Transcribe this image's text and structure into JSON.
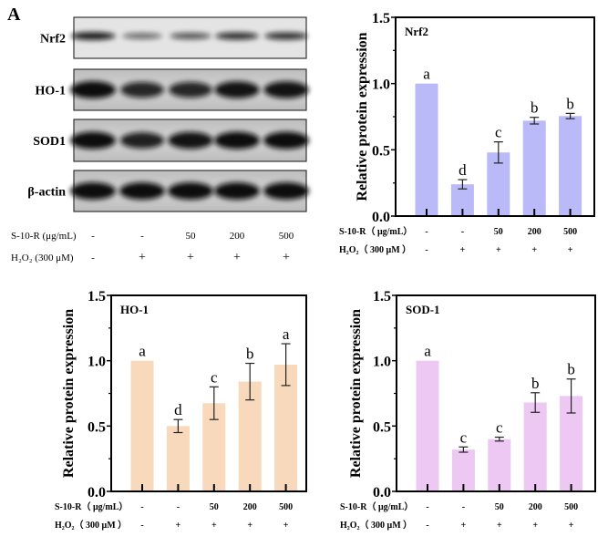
{
  "panel_label": "A",
  "western_blot": {
    "rows": [
      {
        "label": "Nrf2",
        "band_intensity": [
          0.9,
          0.35,
          0.5,
          0.75,
          0.75
        ]
      },
      {
        "label": "HO-1",
        "band_intensity": [
          1.0,
          0.8,
          0.8,
          0.95,
          0.95
        ]
      },
      {
        "label": "SOD1",
        "band_intensity": [
          1.0,
          0.85,
          0.95,
          1.0,
          1.0
        ]
      },
      {
        "label": "β-actin",
        "band_intensity": [
          1.0,
          1.0,
          1.0,
          1.0,
          1.0
        ]
      }
    ],
    "treatment_rows": [
      {
        "label": "S-10-R (μg/mL)",
        "values": [
          "-",
          "-",
          "50",
          "200",
          "500"
        ]
      },
      {
        "label": "H₂O₂ (300 μM)",
        "values": [
          "-",
          "+",
          "+",
          "+",
          "+"
        ]
      }
    ]
  },
  "chart_data": [
    {
      "type": "bar",
      "title": "Nrf2",
      "ylabel": "Relative protein expression",
      "ylim": [
        0,
        1.5
      ],
      "yticks": [
        "0.0",
        "0.5",
        "1.0",
        "1.5"
      ],
      "color": "#babaf8",
      "values": [
        1.0,
        0.24,
        0.48,
        0.72,
        0.755
      ],
      "errors": [
        0,
        0.035,
        0.08,
        0.025,
        0.02
      ],
      "letters": [
        "a",
        "d",
        "c",
        "b",
        "b"
      ],
      "treatment_rows": [
        {
          "label": "S-10-R（ μg/mL）",
          "values": [
            "-",
            "-",
            "50",
            "200",
            "500"
          ]
        },
        {
          "label": "H₂O₂（ 300 μM ）",
          "values": [
            "-",
            "+",
            "+",
            "+",
            "+"
          ]
        }
      ]
    },
    {
      "type": "bar",
      "title": "HO-1",
      "ylabel": "Relative protein expression",
      "ylim": [
        0,
        1.5
      ],
      "yticks": [
        "0.0",
        "0.5",
        "1.0",
        "1.5"
      ],
      "color": "#f8d9bc",
      "values": [
        1.0,
        0.5,
        0.675,
        0.84,
        0.97
      ],
      "errors": [
        0,
        0.05,
        0.125,
        0.14,
        0.16
      ],
      "letters": [
        "a",
        "d",
        "c",
        "b",
        "a"
      ],
      "treatment_rows": [
        {
          "label": "S-10-R（ μg/mL）",
          "values": [
            "-",
            "-",
            "50",
            "200",
            "500"
          ]
        },
        {
          "label": "H₂O₂（ 300 μM ）",
          "values": [
            "-",
            "+",
            "+",
            "+",
            "+"
          ]
        }
      ]
    },
    {
      "type": "bar",
      "title": "SOD-1",
      "ylabel": "Relative protein expression",
      "ylim": [
        0,
        1.5
      ],
      "yticks": [
        "0.0",
        "0.5",
        "1.0",
        "1.5"
      ],
      "color": "#ecc8f2",
      "values": [
        1.0,
        0.32,
        0.4,
        0.68,
        0.73
      ],
      "errors": [
        0,
        0.02,
        0.015,
        0.075,
        0.13
      ],
      "letters": [
        "a",
        "c",
        "c",
        "b",
        "b"
      ],
      "treatment_rows": [
        {
          "label": "S-10-R（ μg/mL）",
          "values": [
            "-",
            "-",
            "50",
            "200",
            "500"
          ]
        },
        {
          "label": "H₂O₂（ 300 μM ）",
          "values": [
            "-",
            "+",
            "+",
            "+",
            "+"
          ]
        }
      ]
    }
  ]
}
